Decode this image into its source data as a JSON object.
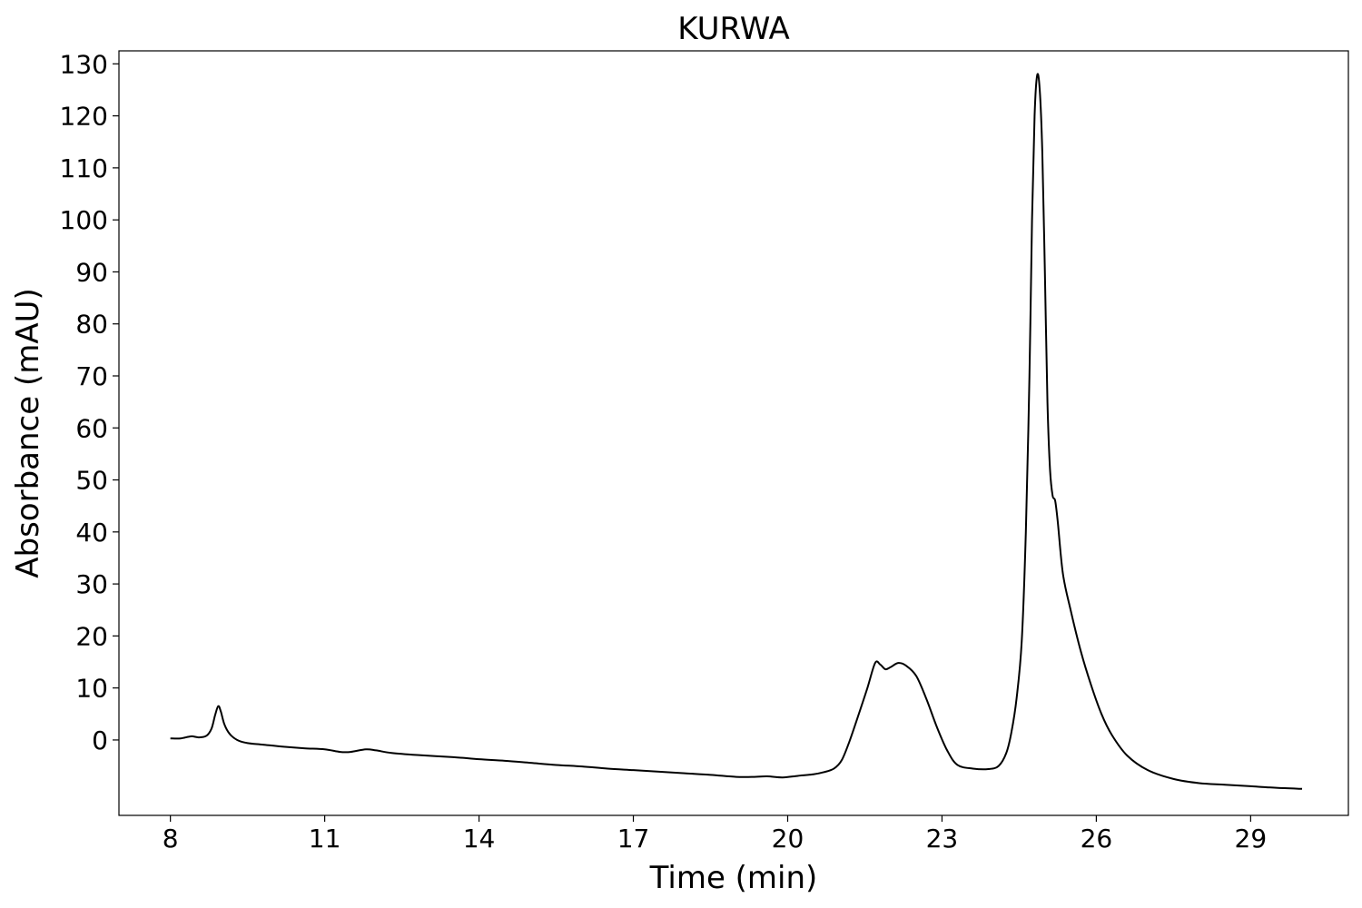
{
  "chart_data": {
    "type": "line",
    "title": "KURWA",
    "xlabel": "Time (min)",
    "ylabel": "Absorbance (mAU)",
    "xlim": [
      7.0,
      30.9
    ],
    "ylim": [
      -14.5,
      132.5
    ],
    "xticks": [
      8,
      11,
      14,
      17,
      20,
      23,
      26,
      29
    ],
    "yticks": [
      0,
      10,
      20,
      30,
      40,
      50,
      60,
      70,
      80,
      90,
      100,
      110,
      120,
      130
    ],
    "grid": false,
    "legend": "none",
    "line_color": "#000000",
    "series": [
      {
        "x": [
          8.0,
          8.2,
          8.4,
          8.55,
          8.7,
          8.8,
          8.87,
          8.93,
          8.98,
          9.05,
          9.15,
          9.3,
          9.5,
          9.8,
          10.2,
          10.6,
          11.0,
          11.3,
          11.5,
          11.8,
          12.0,
          12.3,
          12.8,
          13.5,
          14.0,
          14.5,
          15.0,
          15.5,
          16.0,
          16.5,
          17.0,
          17.5,
          18.0,
          18.5,
          19.0,
          19.3,
          19.6,
          19.9,
          20.2,
          20.5,
          20.7,
          20.9,
          21.05,
          21.2,
          21.4,
          21.55,
          21.7,
          21.8,
          21.9,
          22.0,
          22.15,
          22.3,
          22.5,
          22.7,
          22.9,
          23.1,
          23.3,
          23.6,
          23.9,
          24.1,
          24.25,
          24.35,
          24.45,
          24.55,
          24.63,
          24.7,
          24.75,
          24.8,
          24.85,
          24.9,
          24.95,
          25.0,
          25.05,
          25.1,
          25.15,
          25.2,
          25.25,
          25.35,
          25.5,
          25.7,
          25.9,
          26.1,
          26.3,
          26.6,
          27.0,
          27.5,
          28.0,
          28.5,
          29.0,
          29.5,
          30.0
        ],
        "y": [
          0.3,
          0.3,
          0.7,
          0.5,
          0.8,
          2.2,
          4.8,
          6.5,
          5.5,
          3.0,
          1.2,
          0.0,
          -0.6,
          -0.9,
          -1.3,
          -1.6,
          -1.8,
          -2.3,
          -2.3,
          -1.8,
          -2.0,
          -2.5,
          -2.9,
          -3.3,
          -3.7,
          -4.0,
          -4.4,
          -4.8,
          -5.1,
          -5.5,
          -5.8,
          -6.1,
          -6.4,
          -6.7,
          -7.1,
          -7.1,
          -7.0,
          -7.2,
          -6.9,
          -6.6,
          -6.2,
          -5.5,
          -3.9,
          -0.3,
          5.5,
          10.0,
          14.8,
          14.5,
          13.6,
          14.0,
          14.8,
          14.3,
          12.3,
          7.8,
          2.5,
          -2.0,
          -4.8,
          -5.5,
          -5.6,
          -5.0,
          -2.5,
          1.5,
          8.0,
          19.0,
          40.0,
          70.0,
          100.0,
          120.0,
          127.8,
          125.0,
          113.0,
          90.0,
          65.0,
          52.0,
          47.0,
          46.0,
          42.0,
          32.0,
          25.0,
          17.0,
          10.5,
          5.0,
          1.0,
          -3.0,
          -5.8,
          -7.5,
          -8.3,
          -8.6,
          -8.9,
          -9.2,
          -9.4
        ]
      }
    ]
  }
}
